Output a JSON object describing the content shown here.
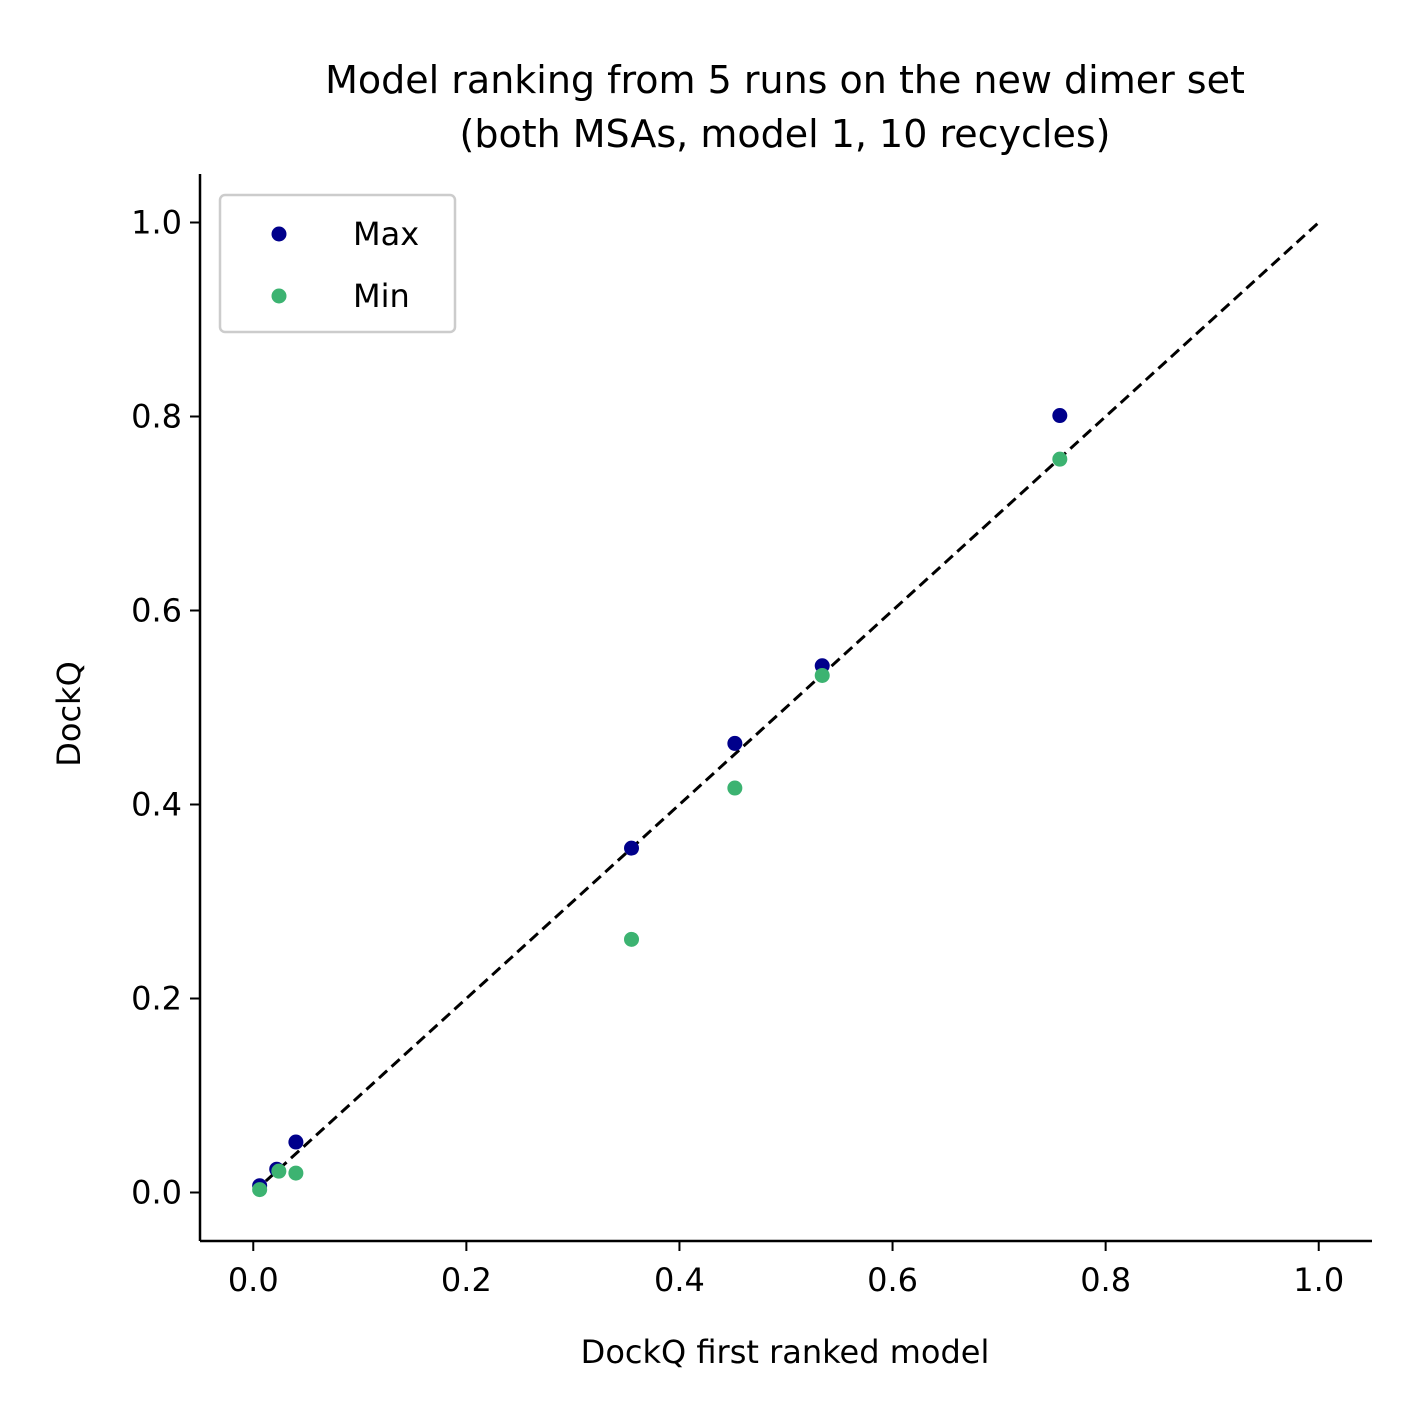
{
  "chart_data": {
    "type": "scatter",
    "title_lines": [
      "Model ranking from 5 runs on the new dimer set",
      "(both MSAs, model 1, 10 recycles)"
    ],
    "xlabel": "DockQ first ranked model",
    "ylabel": "DockQ",
    "xlim": [
      -0.05,
      1.05
    ],
    "ylim": [
      -0.05,
      1.05
    ],
    "xticks": [
      0.0,
      0.2,
      0.4,
      0.6,
      0.8,
      1.0
    ],
    "xtick_labels": [
      "0.0",
      "0.2",
      "0.4",
      "0.6",
      "0.8",
      "1.0"
    ],
    "yticks": [
      0.0,
      0.2,
      0.4,
      0.6,
      0.8,
      1.0
    ],
    "ytick_labels": [
      "0.0",
      "0.2",
      "0.4",
      "0.6",
      "0.8",
      "1.0"
    ],
    "grid": false,
    "legend_position": "top-left",
    "reference_line": {
      "style": "dashed",
      "color": "#000000",
      "from": [
        0.0,
        0.0
      ],
      "to": [
        1.0,
        1.0
      ]
    },
    "series": [
      {
        "name": "Max",
        "color": "#00008b",
        "points": [
          {
            "x": 0.006,
            "y": 0.007
          },
          {
            "x": 0.022,
            "y": 0.024
          },
          {
            "x": 0.04,
            "y": 0.052
          },
          {
            "x": 0.355,
            "y": 0.355
          },
          {
            "x": 0.452,
            "y": 0.463
          },
          {
            "x": 0.534,
            "y": 0.543
          },
          {
            "x": 0.757,
            "y": 0.801
          }
        ]
      },
      {
        "name": "Min",
        "color": "#3cb371",
        "points": [
          {
            "x": 0.006,
            "y": 0.003
          },
          {
            "x": 0.024,
            "y": 0.022
          },
          {
            "x": 0.04,
            "y": 0.02
          },
          {
            "x": 0.355,
            "y": 0.261
          },
          {
            "x": 0.452,
            "y": 0.417
          },
          {
            "x": 0.534,
            "y": 0.533
          },
          {
            "x": 0.757,
            "y": 0.756
          }
        ]
      }
    ]
  }
}
